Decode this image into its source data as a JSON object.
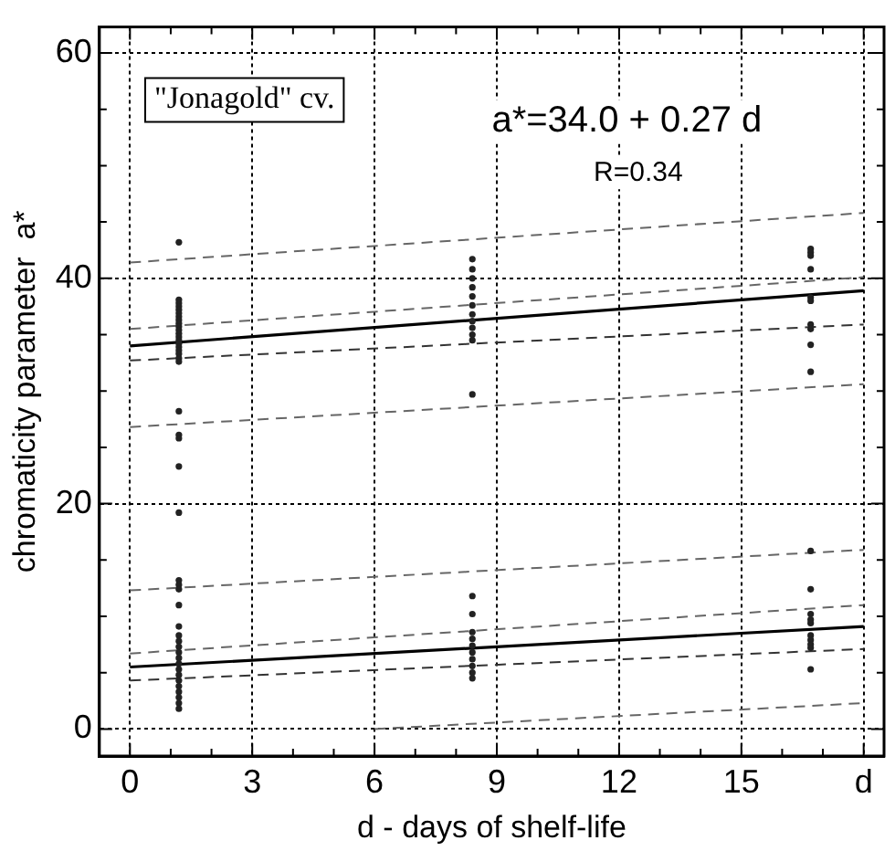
{
  "chart_data": {
    "type": "scatter",
    "xlabel": "d - days of shelf-life",
    "ylabel": "chromaticity parameter  a*",
    "annotations": [
      "\"Jonagold\" cv.",
      "a*=34.0 + 0.27 d",
      "R=0.34"
    ],
    "xlim": [
      -0.75,
      18.5
    ],
    "ylim": [
      -2.4,
      62.3
    ],
    "xticks": [
      0,
      {
        "value": 1,
        "label": null
      },
      {
        "value": 2,
        "label": null
      },
      3,
      {
        "value": 4,
        "label": null
      },
      {
        "value": 5,
        "label": null
      },
      6,
      {
        "value": 7,
        "label": null
      },
      {
        "value": 8,
        "label": null
      },
      9,
      {
        "value": 10,
        "label": null
      },
      {
        "value": 11,
        "label": null
      },
      12,
      {
        "value": 13,
        "label": null
      },
      {
        "value": 14,
        "label": null
      },
      15,
      {
        "value": 16,
        "label": null
      },
      {
        "value": 17,
        "label": null
      },
      {
        "value": 18,
        "label": "d"
      }
    ],
    "yticks": [
      0,
      {
        "value": 5,
        "label": null
      },
      {
        "value": 10,
        "label": null
      },
      {
        "value": 15,
        "label": null
      },
      20,
      {
        "value": 25,
        "label": null
      },
      {
        "value": 30,
        "label": null
      },
      {
        "value": 35,
        "label": null
      },
      40,
      {
        "value": 45,
        "label": null
      },
      {
        "value": 50,
        "label": null
      },
      {
        "value": 55,
        "label": null
      },
      60
    ],
    "grid": true,
    "series": [
      {
        "type": "scatter",
        "marker": "circle",
        "color": "#222222",
        "x": [
          1.2,
          1.2,
          1.2,
          1.2,
          1.2,
          1.2,
          1.2,
          1.2,
          1.2,
          1.2,
          1.2,
          1.2,
          1.2,
          1.2,
          1.2,
          1.2,
          1.2,
          1.2,
          1.2,
          1.2,
          1.2,
          1.2,
          1.2,
          1.2,
          1.2,
          1.2,
          1.2,
          1.2,
          1.2,
          1.2,
          1.2,
          1.2,
          1.2,
          1.2,
          1.2,
          1.2,
          1.2,
          1.2,
          1.2,
          1.2,
          1.2,
          1.2,
          1.2,
          1.2,
          8.4,
          8.4,
          8.4,
          8.4,
          8.4,
          8.4,
          8.4,
          8.4,
          8.4,
          8.4,
          8.4,
          8.4,
          8.4,
          8.4,
          8.4,
          8.4,
          8.4,
          8.4,
          8.4,
          8.4,
          8.4,
          8.4,
          16.7,
          16.7,
          16.7,
          16.7,
          16.7,
          16.7,
          16.7,
          16.7,
          16.7,
          16.7,
          16.7,
          16.7,
          16.7,
          16.7,
          16.7,
          16.7,
          16.7,
          16.7,
          16.7,
          16.7
        ],
        "values": [
          43.2,
          38.1,
          37.8,
          37.5,
          37.2,
          36.9,
          36.6,
          36.3,
          36.0,
          35.7,
          35.4,
          35.1,
          34.8,
          34.5,
          34.2,
          33.9,
          33.6,
          33.3,
          32.9,
          32.6,
          28.2,
          26.1,
          25.8,
          23.3,
          19.2,
          13.2,
          12.8,
          12.4,
          11.0,
          9.1,
          8.3,
          7.8,
          7.3,
          6.8,
          6.3,
          5.8,
          5.3,
          4.8,
          4.3,
          3.8,
          3.3,
          2.8,
          2.3,
          1.8,
          41.7,
          40.8,
          40.0,
          39.2,
          38.4,
          37.6,
          36.8,
          36.2,
          35.6,
          35.0,
          34.5,
          29.7,
          11.8,
          10.2,
          8.6,
          8.0,
          7.4,
          6.8,
          6.2,
          5.6,
          5.0,
          4.5,
          42.6,
          42.3,
          42.0,
          40.8,
          38.3,
          38.0,
          35.9,
          35.5,
          34.1,
          31.7,
          15.8,
          12.4,
          10.2,
          9.7,
          9.4,
          8.3,
          7.9,
          7.5,
          7.2,
          5.3
        ]
      },
      {
        "type": "line",
        "color": "#000000",
        "line_style": "solid",
        "x": [
          0,
          18
        ],
        "values": [
          34.0,
          38.9
        ]
      },
      {
        "type": "line",
        "color": "#000000",
        "line_style": "solid",
        "x": [
          0,
          18
        ],
        "values": [
          5.5,
          9.1
        ]
      },
      {
        "type": "line",
        "color": "#666666",
        "line_style": "dashed",
        "x": [
          0,
          18
        ],
        "values": [
          41.4,
          45.8
        ]
      },
      {
        "type": "line",
        "color": "#666666",
        "line_style": "dashed",
        "x": [
          0,
          18
        ],
        "values": [
          35.5,
          40.1
        ]
      },
      {
        "type": "line",
        "color": "#333333",
        "line_style": "dashed",
        "x": [
          0,
          18
        ],
        "values": [
          32.7,
          35.9
        ]
      },
      {
        "type": "line",
        "color": "#666666",
        "line_style": "dashed",
        "x": [
          0,
          18
        ],
        "values": [
          26.8,
          30.6
        ]
      },
      {
        "type": "line",
        "color": "#666666",
        "line_style": "dashed",
        "x": [
          0,
          18
        ],
        "values": [
          12.3,
          15.9
        ]
      },
      {
        "type": "line",
        "color": "#666666",
        "line_style": "dashed",
        "x": [
          0,
          18
        ],
        "values": [
          6.7,
          11.0
        ]
      },
      {
        "type": "line",
        "color": "#333333",
        "line_style": "dashed",
        "x": [
          0,
          18
        ],
        "values": [
          4.3,
          7.1
        ]
      },
      {
        "type": "line",
        "color": "#666666",
        "line_style": "dashed",
        "x": [
          6,
          18
        ],
        "values": [
          0.0,
          2.3
        ]
      }
    ]
  }
}
